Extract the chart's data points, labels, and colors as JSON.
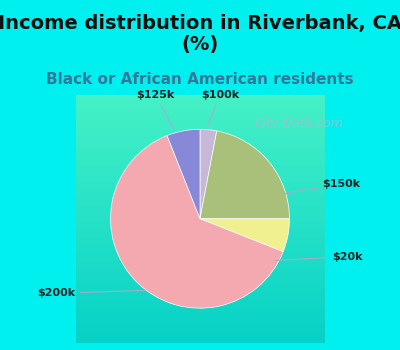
{
  "title": "Income distribution in Riverbank, CA\n(%)",
  "subtitle": "Black or African American residents",
  "slices": [
    {
      "label": "$100k",
      "value": 3.0,
      "color": "#c8b8d8"
    },
    {
      "label": "$150k",
      "value": 22.0,
      "color": "#a8c07a"
    },
    {
      "label": "$20k",
      "value": 6.0,
      "color": "#f0f090"
    },
    {
      "label": "$200k",
      "value": 63.0,
      "color": "#f4a8b0"
    },
    {
      "label": "$125k",
      "value": 6.0,
      "color": "#8888d8"
    }
  ],
  "background_color": "#00f0f0",
  "chart_bg_top": "#d8f0e8",
  "chart_bg_bottom": "#c0e8d0",
  "startangle": 90,
  "counterclock": false,
  "title_fontsize": 14,
  "subtitle_fontsize": 11,
  "title_color": "#111111",
  "subtitle_color": "#337799",
  "label_fontsize": 8,
  "label_color": "#222222",
  "watermark": "City-Data.com",
  "watermark_color": "#aabbcc",
  "watermark_fontsize": 9
}
